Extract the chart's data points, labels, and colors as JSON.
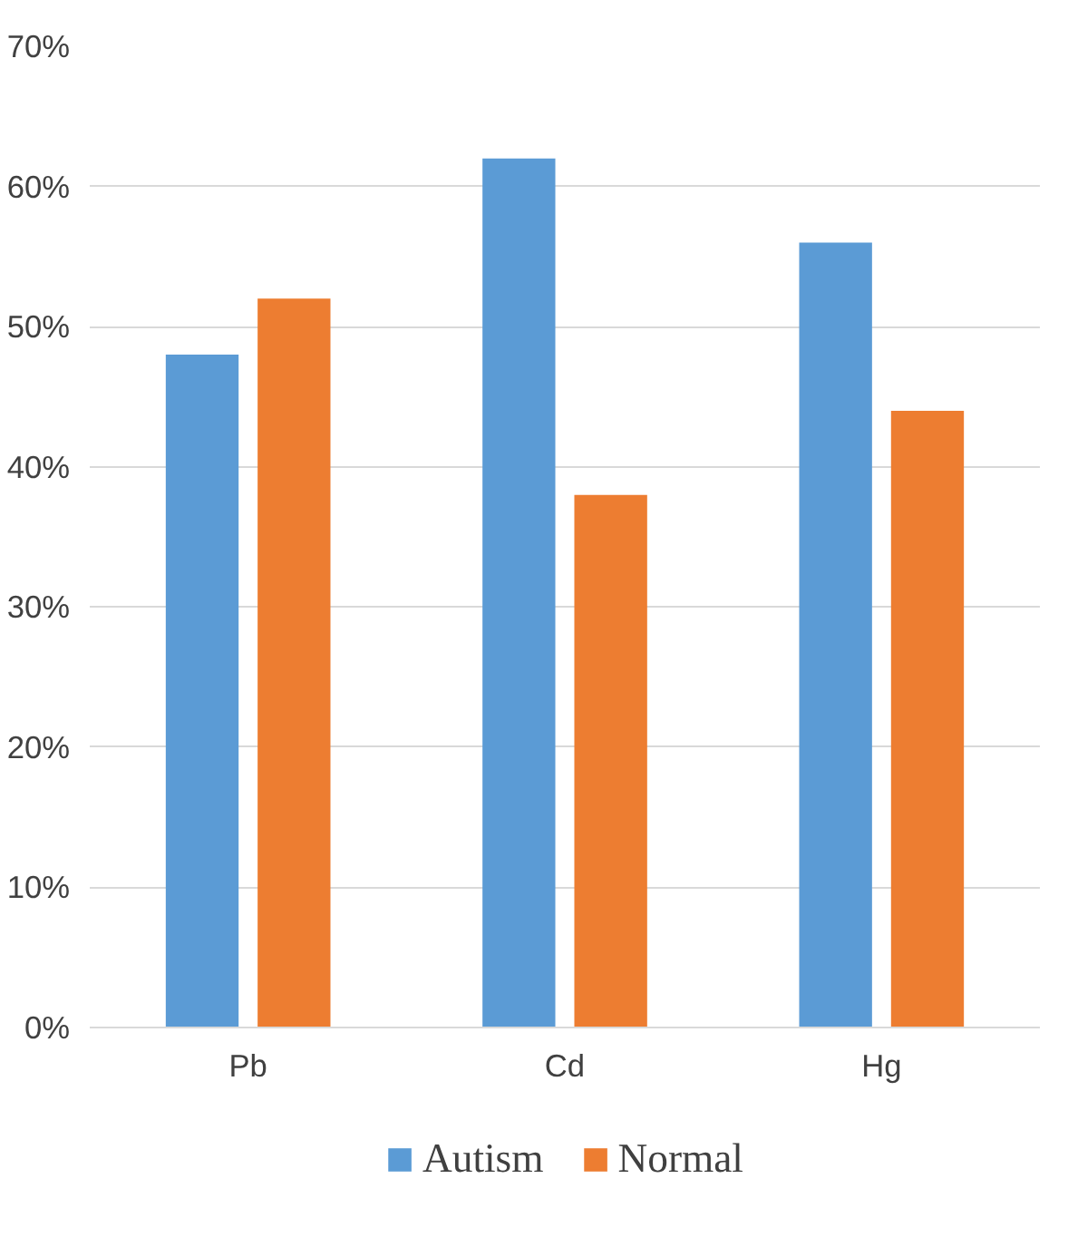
{
  "chart_data": {
    "type": "bar",
    "categories": [
      "Pb",
      "Cd",
      "Hg"
    ],
    "series": [
      {
        "name": "Autism",
        "color": "#5b9bd5",
        "values": [
          48,
          62,
          56
        ]
      },
      {
        "name": "Normal",
        "color": "#ed7d31",
        "values": [
          52,
          38,
          44
        ]
      }
    ],
    "ylim": [
      0,
      70
    ],
    "yticks": [
      {
        "value": 0,
        "label": "0%"
      },
      {
        "value": 10,
        "label": "10%"
      },
      {
        "value": 20,
        "label": "20%"
      },
      {
        "value": 30,
        "label": "30%"
      },
      {
        "value": 40,
        "label": "40%"
      },
      {
        "value": 50,
        "label": "50%"
      },
      {
        "value": 60,
        "label": "60%"
      },
      {
        "value": 70,
        "label": "70%"
      }
    ],
    "grid": "y",
    "legend": "bottom"
  }
}
